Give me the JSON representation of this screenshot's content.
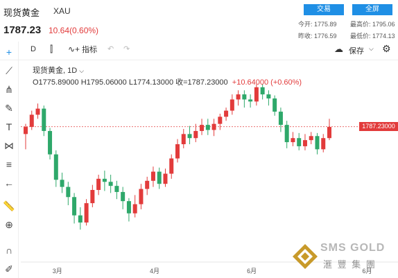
{
  "header": {
    "title": "现货黄金",
    "symbol": "XAU",
    "price": "1787.23",
    "change": "10.64(0.60%)",
    "btn_trade": "交易",
    "btn_full": "全屏",
    "today_open_label": "今开:",
    "today_open": "1775.89",
    "high_label": "最高价:",
    "high": "1795.06",
    "prev_close_label": "昨收:",
    "prev_close": "1776.59",
    "low_label": "最低价:",
    "low": "1774.13"
  },
  "toolbar": {
    "interval": "D",
    "indicator_label": "指标",
    "save_label": "保存"
  },
  "legend": {
    "name": "现货黄金",
    "interval": "1D",
    "ohlc": "O1775.89000  H1795.06000  L1774.13000  收=1787.23000",
    "change": "+10.64000 (+0.60%)"
  },
  "last_price_label": "1787.23000",
  "watermark": {
    "brand": "SMS GOLD",
    "chinese": "滙 豐 集 團"
  },
  "icons": [
    "crosshair-icon",
    "line-icon",
    "pitchfork-icon",
    "brush-icon",
    "text-icon",
    "pattern-icon",
    "fib-icon",
    "back-arrow-icon",
    "ruler-icon",
    "zoom-icon",
    "magnet-icon",
    "pencil-lock-icon",
    "cloud-icon",
    "gear-icon",
    "undo-icon",
    "redo-icon",
    "candle-type-icon",
    "indicator-icon"
  ],
  "colors": {
    "up": "#e23b3b",
    "down": "#2ea86a",
    "accent": "#1f8fe5"
  },
  "chart_data": {
    "type": "candlestick",
    "ylim": [
      1665,
      1830
    ],
    "last_price": 1787.23,
    "x_ticks": [
      {
        "index": 5,
        "label": "3月"
      },
      {
        "index": 21,
        "label": "4月"
      },
      {
        "index": 37,
        "label": "6月"
      },
      {
        "index": 56,
        "label": "6月"
      }
    ],
    "candles": [
      [
        1780,
        1787,
        1765,
        1790
      ],
      [
        1787,
        1799,
        1784,
        1803
      ],
      [
        1799,
        1805,
        1795,
        1810
      ],
      [
        1805,
        1783,
        1778,
        1808
      ],
      [
        1783,
        1760,
        1755,
        1786
      ],
      [
        1760,
        1735,
        1728,
        1764
      ],
      [
        1735,
        1728,
        1722,
        1742
      ],
      [
        1728,
        1718,
        1710,
        1733
      ],
      [
        1718,
        1700,
        1692,
        1722
      ],
      [
        1700,
        1693,
        1686,
        1708
      ],
      [
        1693,
        1712,
        1690,
        1716
      ],
      [
        1712,
        1725,
        1708,
        1730
      ],
      [
        1725,
        1736,
        1720,
        1740
      ],
      [
        1736,
        1733,
        1724,
        1744
      ],
      [
        1733,
        1729,
        1722,
        1740
      ],
      [
        1729,
        1723,
        1716,
        1734
      ],
      [
        1723,
        1714,
        1706,
        1728
      ],
      [
        1714,
        1702,
        1694,
        1717
      ],
      [
        1702,
        1711,
        1698,
        1720
      ],
      [
        1711,
        1726,
        1706,
        1731
      ],
      [
        1726,
        1734,
        1720,
        1738
      ],
      [
        1734,
        1743,
        1728,
        1748
      ],
      [
        1743,
        1731,
        1726,
        1747
      ],
      [
        1731,
        1741,
        1728,
        1746
      ],
      [
        1741,
        1756,
        1736,
        1760
      ],
      [
        1756,
        1770,
        1752,
        1775
      ],
      [
        1770,
        1780,
        1766,
        1785
      ],
      [
        1780,
        1776,
        1770,
        1788
      ],
      [
        1776,
        1783,
        1772,
        1790
      ],
      [
        1783,
        1789,
        1779,
        1795
      ],
      [
        1789,
        1784,
        1779,
        1795
      ],
      [
        1784,
        1790,
        1778,
        1795
      ],
      [
        1790,
        1797,
        1784,
        1800
      ],
      [
        1797,
        1803,
        1793,
        1806
      ],
      [
        1803,
        1814,
        1799,
        1819
      ],
      [
        1814,
        1819,
        1808,
        1823
      ],
      [
        1819,
        1814,
        1806,
        1823
      ],
      [
        1814,
        1812,
        1806,
        1819
      ],
      [
        1812,
        1826,
        1808,
        1829
      ],
      [
        1826,
        1819,
        1814,
        1829
      ],
      [
        1819,
        1815,
        1808,
        1823
      ],
      [
        1815,
        1802,
        1798,
        1818
      ],
      [
        1802,
        1789,
        1782,
        1806
      ],
      [
        1789,
        1772,
        1766,
        1793
      ],
      [
        1772,
        1776,
        1768,
        1782
      ],
      [
        1776,
        1768,
        1764,
        1781
      ],
      [
        1768,
        1774,
        1764,
        1780
      ],
      [
        1774,
        1778,
        1770,
        1782
      ],
      [
        1778,
        1765,
        1760,
        1781
      ],
      [
        1765,
        1776,
        1762,
        1780
      ],
      [
        1776,
        1787,
        1774,
        1795
      ]
    ]
  }
}
